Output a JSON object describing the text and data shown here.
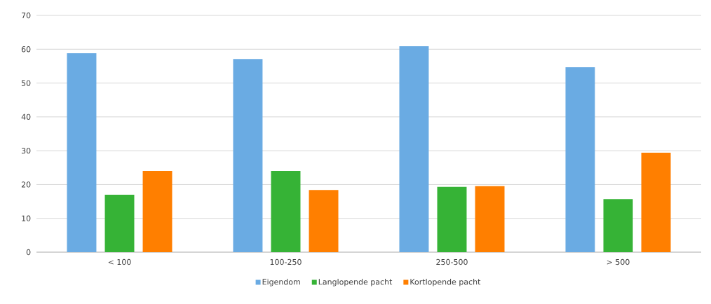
{
  "chart_data": {
    "type": "bar",
    "categories": [
      "< 100",
      "100-250",
      "250-500",
      "> 500"
    ],
    "series": [
      {
        "name": "Eigendom",
        "color": "#6aabe3",
        "values": [
          58.8,
          57.1,
          60.9,
          54.7
        ]
      },
      {
        "name": "Langlopende pacht",
        "color": "#36b336",
        "values": [
          17.0,
          24.0,
          19.3,
          15.7
        ]
      },
      {
        "name": "Kortlopende pacht",
        "color": "#ff7f00",
        "values": [
          24.0,
          18.4,
          19.5,
          29.4
        ]
      }
    ],
    "ylim": [
      0,
      70
    ],
    "yticks": [
      0,
      10,
      20,
      30,
      40,
      50,
      60,
      70
    ],
    "grid": "y",
    "legend": "bottom"
  }
}
